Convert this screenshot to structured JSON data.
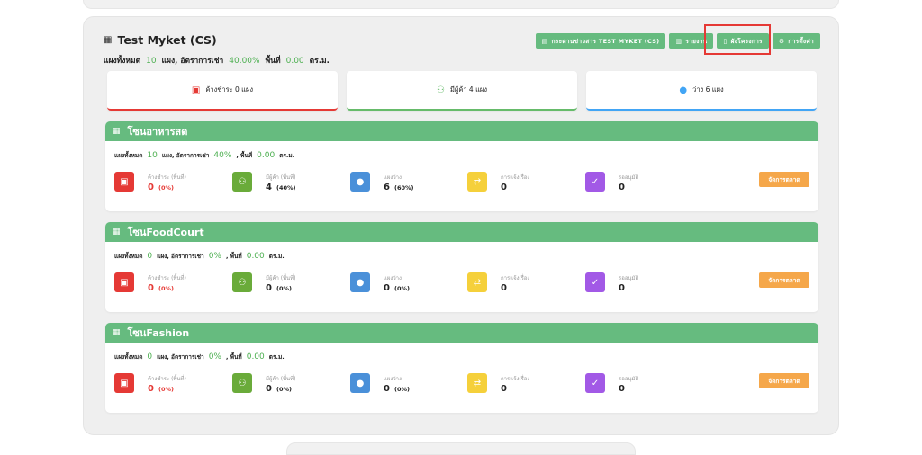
{
  "project": {
    "title": "Test Myket (CS)",
    "summary": {
      "total_label": "แผงทั้งหมด",
      "total": "10",
      "rate_label": "แผง, อัตราการเช่า",
      "rate": "40.00%",
      "area_label": "พื้นที่",
      "area": "0.00",
      "unit": "ตร.ม."
    }
  },
  "toolbar": {
    "notice_board": "กระดานข่าวสาร TEST MYKET (CS)",
    "report": "รายงาน",
    "floorplan": "ผังโครงการ",
    "settings": "การตั้งค่า"
  },
  "stats": [
    {
      "label": "ค้างชำระ 0 แผง",
      "color": "#e53935",
      "icon": "invoice-icon"
    },
    {
      "label": "มีผู้ค้า 4 แผง",
      "color": "#66bb6a",
      "icon": "users-icon"
    },
    {
      "label": "ว่าง 6 แผง",
      "color": "#42a5f5",
      "icon": "user-icon"
    }
  ],
  "zones": [
    {
      "name": "โซนอาหารสด",
      "summary": {
        "total_label": "แผงทั้งหมด",
        "total": "10",
        "rate_label": "แผง, อัตราการเช่า",
        "rate": "40%",
        "area_label": ", พื้นที่",
        "area": "0.00",
        "unit": "ตร.ม."
      },
      "metrics": [
        {
          "label": "ค้างชำระ (พื้นที่)",
          "value": "0",
          "pct": "(0%)"
        },
        {
          "label": "มีผู้ค้า (พื้นที่)",
          "value": "4",
          "pct": "(40%)"
        },
        {
          "label": "แผงว่าง",
          "value": "6",
          "pct": "(60%)"
        },
        {
          "label": "การแจ้งเรื่อง",
          "value": "0"
        },
        {
          "label": "รออนุมัติ",
          "value": "0"
        }
      ],
      "button": "จัดการตลาด"
    },
    {
      "name": "โซนFoodCourt",
      "summary": {
        "total_label": "แผงทั้งหมด",
        "total": "0",
        "rate_label": "แผง, อัตราการเช่า",
        "rate": "0%",
        "area_label": ", พื้นที่",
        "area": "0.00",
        "unit": "ตร.ม."
      },
      "metrics": [
        {
          "label": "ค้างชำระ (พื้นที่)",
          "value": "0",
          "pct": "(0%)"
        },
        {
          "label": "มีผู้ค้า (พื้นที่)",
          "value": "0",
          "pct": "(0%)"
        },
        {
          "label": "แผงว่าง",
          "value": "0",
          "pct": "(0%)"
        },
        {
          "label": "การแจ้งเรื่อง",
          "value": "0"
        },
        {
          "label": "รออนุมัติ",
          "value": "0"
        }
      ],
      "button": "จัดการตลาด"
    },
    {
      "name": "โซนFashion",
      "summary": {
        "total_label": "แผงทั้งหมด",
        "total": "0",
        "rate_label": "แผง, อัตราการเช่า",
        "rate": "0%",
        "area_label": ", พื้นที่",
        "area": "0.00",
        "unit": "ตร.ม."
      },
      "metrics": [
        {
          "label": "ค้างชำระ (พื้นที่)",
          "value": "0",
          "pct": "(0%)"
        },
        {
          "label": "มีผู้ค้า (พื้นที่)",
          "value": "0",
          "pct": "(0%)"
        },
        {
          "label": "แผงว่าง",
          "value": "0",
          "pct": "(0%)"
        },
        {
          "label": "การแจ้งเรื่อง",
          "value": "0"
        },
        {
          "label": "รออนุมัติ",
          "value": "0"
        }
      ],
      "button": "จัดการตลาด"
    }
  ],
  "colors": {
    "green": "#66bb7f",
    "red": "#e53935",
    "blue": "#4a90d9",
    "yellow": "#f5d03b",
    "purple": "#a259e6",
    "orange": "#f5a74a"
  }
}
